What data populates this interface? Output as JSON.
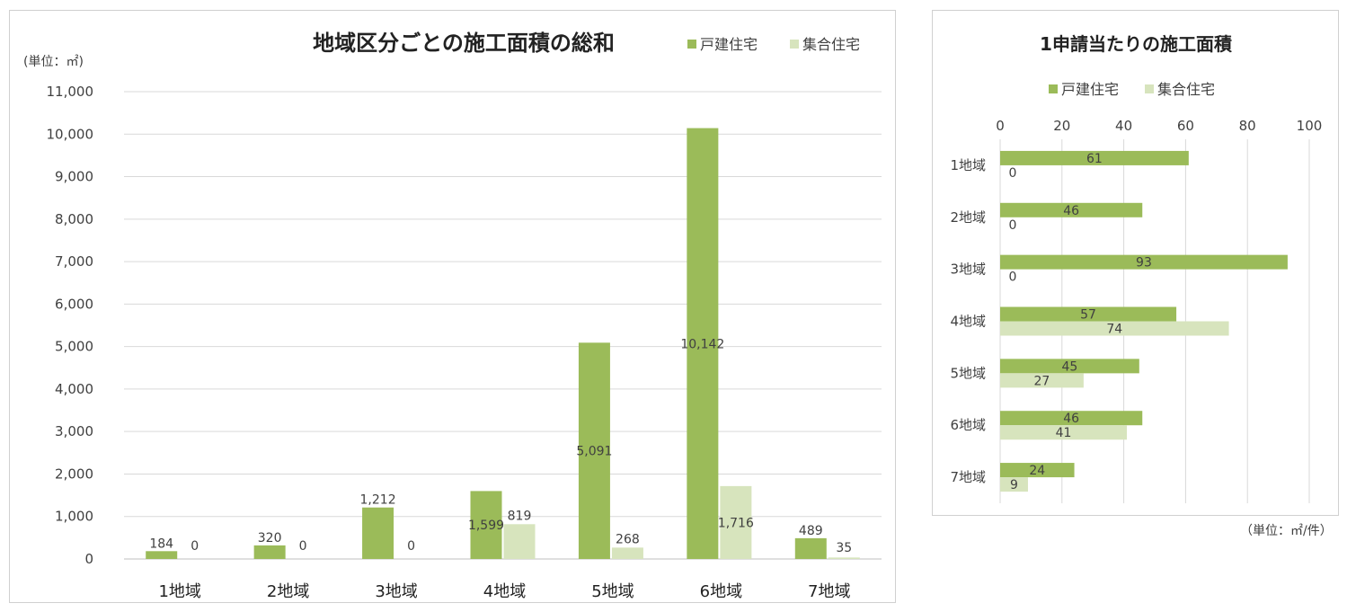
{
  "colors": {
    "detached": "#9bbb59",
    "apartment": "#d7e4bd",
    "grid": "#d9d9d9"
  },
  "chart_data": [
    {
      "type": "bar",
      "title": "地域区分ごとの施工面積の総和",
      "unit_label": "(単位：㎡)",
      "legend_position": "top-right",
      "categories": [
        "1地域",
        "2地域",
        "3地域",
        "4地域",
        "5地域",
        "6地域",
        "7地域"
      ],
      "series": [
        {
          "name": "戸建住宅",
          "values": [
            184,
            320,
            1212,
            1599,
            5091,
            10142,
            489
          ],
          "labels": [
            "184",
            "320",
            "1,212",
            "1,599",
            "5,091",
            "10,142",
            "489"
          ]
        },
        {
          "name": "集合住宅",
          "values": [
            0,
            0,
            0,
            819,
            268,
            1716,
            35
          ],
          "labels": [
            "0",
            "0",
            "0",
            "819",
            "268",
            "1,716",
            "35"
          ]
        }
      ],
      "ylim": [
        0,
        11000
      ],
      "yticks": [
        "0",
        "1,000",
        "2,000",
        "3,000",
        "4,000",
        "5,000",
        "6,000",
        "7,000",
        "8,000",
        "9,000",
        "10,000",
        "11,000"
      ],
      "grid": true
    },
    {
      "type": "bar",
      "orientation": "horizontal",
      "title": "1申請当たりの施工面積",
      "unit_label": "（単位：㎡/件）",
      "legend_position": "top",
      "categories": [
        "1地域",
        "2地域",
        "3地域",
        "4地域",
        "5地域",
        "6地域",
        "7地域"
      ],
      "series": [
        {
          "name": "戸建住宅",
          "values": [
            61,
            46,
            93,
            57,
            45,
            46,
            24
          ]
        },
        {
          "name": "集合住宅",
          "values": [
            0,
            0,
            0,
            74,
            27,
            41,
            9
          ]
        }
      ],
      "xlim": [
        0,
        100
      ],
      "xticks": [
        "0",
        "20",
        "40",
        "60",
        "80",
        "100"
      ],
      "grid": true
    }
  ]
}
